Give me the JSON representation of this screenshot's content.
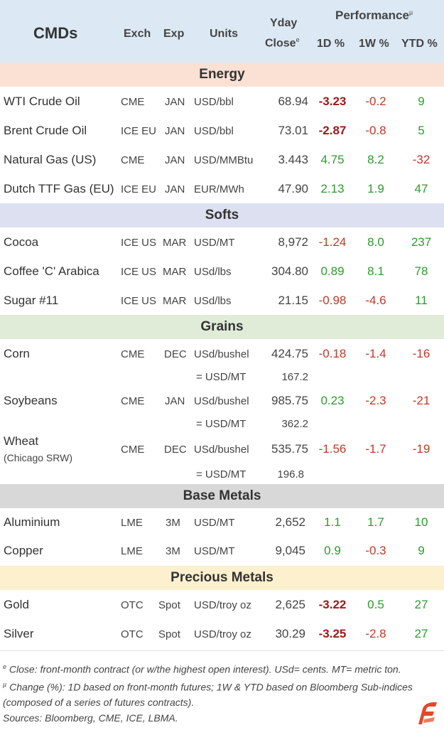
{
  "header": {
    "title": "CMDs",
    "exch": "Exch",
    "exp": "Exp",
    "units": "Units",
    "yday_line1": "Yday",
    "yday_line2": "Close",
    "yday_mark": "e",
    "performance": "Performance",
    "performance_mark": "µ",
    "d1": "1D %",
    "w1": "1W %",
    "ytd": "YTD %"
  },
  "sections": {
    "energy": "Energy",
    "softs": "Softs",
    "grains": "Grains",
    "base_metals": "Base Metals",
    "precious_metals": "Precious Metals"
  },
  "colors": {
    "header_bg": "#dce9f4",
    "energy_bg": "#fbe0d4",
    "softs_bg": "#dde0f0",
    "grains_bg": "#e0ecd8",
    "base_bg": "#d8d8d8",
    "precious_bg": "#fdf0cf",
    "negative": "#c0392b",
    "positive": "#2e9b2e"
  },
  "rows": {
    "wti": {
      "name": "WTI Crude Oil",
      "exch": "CME",
      "exp": "JAN",
      "unit": "USD/bbl",
      "close": "68.94",
      "d1": "-3.23",
      "w1": "-0.2",
      "ytd": "9"
    },
    "brent": {
      "name": "Brent Crude Oil",
      "exch": "ICE EU",
      "exp": "JAN",
      "unit": "USD/bbl",
      "close": "73.01",
      "d1": "-2.87",
      "w1": "-0.8",
      "ytd": "5"
    },
    "natgas": {
      "name": "Natural Gas (US)",
      "exch": "CME",
      "exp": "JAN",
      "unit": "USD/MMBtu",
      "close": "3.443",
      "d1": "4.75",
      "w1": "8.2",
      "ytd": "-32"
    },
    "ttf": {
      "name": "Dutch TTF Gas (EU)",
      "exch": "ICE EU",
      "exp": "JAN",
      "unit": "EUR/MWh",
      "close": "47.90",
      "d1": "2.13",
      "w1": "1.9",
      "ytd": "47"
    },
    "cocoa": {
      "name": "Cocoa",
      "exch": "ICE US",
      "exp": "MAR",
      "unit": "USD/MT",
      "close": "8,972",
      "d1": "-1.24",
      "w1": "8.0",
      "ytd": "237"
    },
    "coffee": {
      "name": "Coffee 'C' Arabica",
      "exch": "ICE US",
      "exp": "MAR",
      "unit": "USd/lbs",
      "close": "304.80",
      "d1": "0.89",
      "w1": "8.1",
      "ytd": "78"
    },
    "sugar": {
      "name": "Sugar #11",
      "exch": "ICE US",
      "exp": "MAR",
      "unit": "USd/lbs",
      "close": "21.15",
      "d1": "-0.98",
      "w1": "-4.6",
      "ytd": "11"
    },
    "corn": {
      "name": "Corn",
      "exch": "CME",
      "exp": "DEC",
      "unit": "USd/bushel",
      "close": "424.75",
      "d1": "-0.18",
      "w1": "-1.4",
      "ytd": "-16",
      "conv_label": "= USD/MT",
      "conv_value": "167.2"
    },
    "soy": {
      "name": "Soybeans",
      "exch": "CME",
      "exp": "JAN",
      "unit": "USd/bushel",
      "close": "985.75",
      "d1": "0.23",
      "w1": "-2.3",
      "ytd": "-21",
      "conv_label": "= USD/MT",
      "conv_value": "362.2"
    },
    "wheat": {
      "name": "Wheat",
      "sub": "(Chicago SRW)",
      "exch": "CME",
      "exp": "DEC",
      "unit": "USd/bushel",
      "close": "535.75",
      "d1": "-1.56",
      "w1": "-1.7",
      "ytd": "-19",
      "conv_label": "= USD/MT",
      "conv_value": "196.8"
    },
    "alu": {
      "name": "Aluminium",
      "exch": "LME",
      "exp": "3M",
      "unit": "USD/MT",
      "close": "2,652",
      "d1": "1.1",
      "w1": "1.7",
      "ytd": "10"
    },
    "copper": {
      "name": "Copper",
      "exch": "LME",
      "exp": "3M",
      "unit": "USD/MT",
      "close": "9,045",
      "d1": "0.9",
      "w1": "-0.3",
      "ytd": "9"
    },
    "gold": {
      "name": "Gold",
      "exch": "OTC",
      "exp": "Spot",
      "unit": "USD/troy oz",
      "close": "2,625",
      "d1": "-3.22",
      "w1": "0.5",
      "ytd": "27"
    },
    "silver": {
      "name": "Silver",
      "exch": "OTC",
      "exp": "Spot",
      "unit": "USD/troy oz",
      "close": "30.29",
      "d1": "-3.25",
      "w1": "-2.8",
      "ytd": "27"
    }
  },
  "footnotes": {
    "mark1": "e",
    "line1": "Close: front-month contract (or w/the highest open interest). USd= cents. MT= metric ton.",
    "mark2": "µ",
    "line2": "Change (%): 1D based on front-month futures; 1W & YTD based on Bloomberg Sub-indices",
    "line3": "(composed of a series of futures contracts).",
    "line4": "Sources: Bloomberg, CME, ICE, LBMA."
  }
}
